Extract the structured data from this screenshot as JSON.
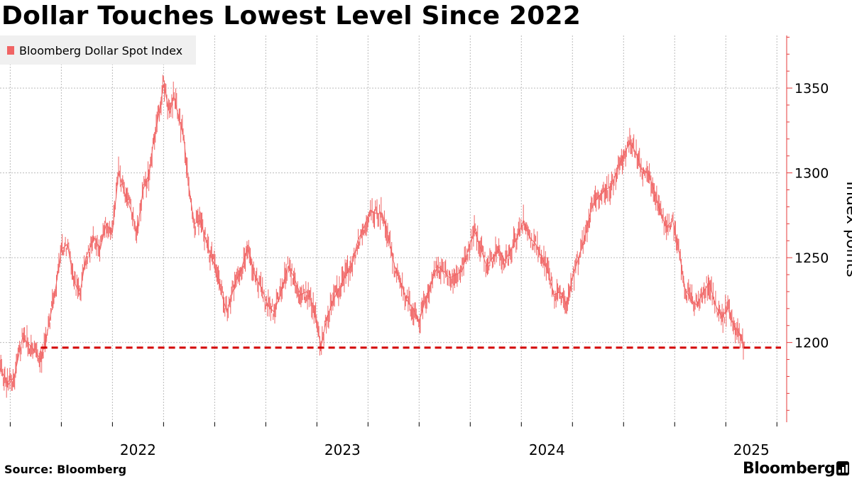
{
  "title": "Dollar Touches Lowest Level Since 2022",
  "source": "Source:  Bloomberg",
  "brand": "Bloomberg",
  "colors": {
    "series": "#f06464",
    "reference_line": "#d40000",
    "grid": "#bbbbbb",
    "axis": "#e53b3b",
    "legend_bg": "#f0f0f0"
  },
  "chart_data": {
    "type": "line",
    "title": "Dollar Touches Lowest Level Since 2022",
    "legend": [
      "Bloomberg Dollar Spot Index"
    ],
    "legend_position": "top-left",
    "ylabel": "Index points",
    "y_axis_side": "right",
    "ylim": [
      1153,
      1381
    ],
    "yticks": [
      1200,
      1250,
      1300,
      1350
    ],
    "x_range": [
      2021.45,
      2025.27
    ],
    "x_tick_labels": [
      {
        "label": "2022",
        "x": 2022.0
      },
      {
        "label": "2023",
        "x": 2023.0
      },
      {
        "label": "2024",
        "x": 2024.0
      },
      {
        "label": "2025",
        "x": 2025.0
      }
    ],
    "grid": true,
    "reference_line": {
      "y": 1197,
      "x_start": 2021.65,
      "style": "dashed"
    },
    "series": [
      {
        "name": "Bloomberg Dollar Spot Index",
        "points": [
          [
            2021.45,
            1185
          ],
          [
            2021.49,
            1175
          ],
          [
            2021.52,
            1180
          ],
          [
            2021.56,
            1203
          ],
          [
            2021.6,
            1198
          ],
          [
            2021.65,
            1190
          ],
          [
            2021.68,
            1205
          ],
          [
            2021.72,
            1230
          ],
          [
            2021.75,
            1255
          ],
          [
            2021.78,
            1258
          ],
          [
            2021.81,
            1237
          ],
          [
            2021.84,
            1228
          ],
          [
            2021.87,
            1250
          ],
          [
            2021.91,
            1262
          ],
          [
            2021.94,
            1255
          ],
          [
            2021.97,
            1270
          ],
          [
            2022.0,
            1265
          ],
          [
            2022.03,
            1300
          ],
          [
            2022.06,
            1288
          ],
          [
            2022.09,
            1278
          ],
          [
            2022.12,
            1265
          ],
          [
            2022.15,
            1290
          ],
          [
            2022.18,
            1300
          ],
          [
            2022.2,
            1318
          ],
          [
            2022.22,
            1330
          ],
          [
            2022.25,
            1352
          ],
          [
            2022.28,
            1335
          ],
          [
            2022.3,
            1345
          ],
          [
            2022.33,
            1330
          ],
          [
            2022.35,
            1320
          ],
          [
            2022.37,
            1295
          ],
          [
            2022.4,
            1270
          ],
          [
            2022.43,
            1272
          ],
          [
            2022.47,
            1255
          ],
          [
            2022.5,
            1245
          ],
          [
            2022.53,
            1230
          ],
          [
            2022.56,
            1218
          ],
          [
            2022.6,
            1235
          ],
          [
            2022.63,
            1243
          ],
          [
            2022.66,
            1256
          ],
          [
            2022.7,
            1238
          ],
          [
            2022.73,
            1232
          ],
          [
            2022.76,
            1222
          ],
          [
            2022.79,
            1218
          ],
          [
            2022.82,
            1228
          ],
          [
            2022.86,
            1245
          ],
          [
            2022.89,
            1238
          ],
          [
            2022.92,
            1228
          ],
          [
            2022.95,
            1230
          ],
          [
            2022.98,
            1222
          ],
          [
            2023.02,
            1198
          ],
          [
            2023.05,
            1215
          ],
          [
            2023.08,
            1225
          ],
          [
            2023.11,
            1232
          ],
          [
            2023.14,
            1240
          ],
          [
            2023.17,
            1245
          ],
          [
            2023.2,
            1260
          ],
          [
            2023.23,
            1268
          ],
          [
            2023.26,
            1278
          ],
          [
            2023.29,
            1276
          ],
          [
            2023.32,
            1276
          ],
          [
            2023.35,
            1262
          ],
          [
            2023.38,
            1245
          ],
          [
            2023.41,
            1235
          ],
          [
            2023.44,
            1225
          ],
          [
            2023.47,
            1220
          ],
          [
            2023.5,
            1212
          ],
          [
            2023.53,
            1225
          ],
          [
            2023.56,
            1235
          ],
          [
            2023.59,
            1245
          ],
          [
            2023.62,
            1242
          ],
          [
            2023.65,
            1238
          ],
          [
            2023.68,
            1240
          ],
          [
            2023.71,
            1242
          ],
          [
            2023.74,
            1255
          ],
          [
            2023.77,
            1266
          ],
          [
            2023.8,
            1256
          ],
          [
            2023.83,
            1245
          ],
          [
            2023.86,
            1250
          ],
          [
            2023.89,
            1255
          ],
          [
            2023.92,
            1248
          ],
          [
            2023.95,
            1255
          ],
          [
            2023.98,
            1262
          ],
          [
            2024.01,
            1272
          ],
          [
            2024.04,
            1262
          ],
          [
            2024.07,
            1258
          ],
          [
            2024.1,
            1250
          ],
          [
            2024.13,
            1242
          ],
          [
            2024.16,
            1228
          ],
          [
            2024.19,
            1230
          ],
          [
            2024.22,
            1222
          ],
          [
            2024.25,
            1238
          ],
          [
            2024.28,
            1250
          ],
          [
            2024.31,
            1262
          ],
          [
            2024.34,
            1278
          ],
          [
            2024.37,
            1285
          ],
          [
            2024.41,
            1290
          ],
          [
            2024.44,
            1292
          ],
          [
            2024.47,
            1302
          ],
          [
            2024.5,
            1310
          ],
          [
            2024.53,
            1318
          ],
          [
            2024.56,
            1312
          ],
          [
            2024.59,
            1302
          ],
          [
            2024.62,
            1300
          ],
          [
            2024.65,
            1290
          ],
          [
            2024.68,
            1276
          ],
          [
            2024.71,
            1268
          ],
          [
            2024.74,
            1272
          ],
          [
            2024.77,
            1255
          ],
          [
            2024.8,
            1232
          ],
          [
            2024.83,
            1225
          ],
          [
            2024.86,
            1222
          ],
          [
            2024.89,
            1230
          ],
          [
            2024.92,
            1235
          ],
          [
            2024.95,
            1222
          ],
          [
            2024.98,
            1215
          ],
          [
            2025.01,
            1220
          ],
          [
            2025.04,
            1210
          ],
          [
            2025.07,
            1205
          ],
          [
            2025.09,
            1198
          ]
        ]
      }
    ]
  }
}
